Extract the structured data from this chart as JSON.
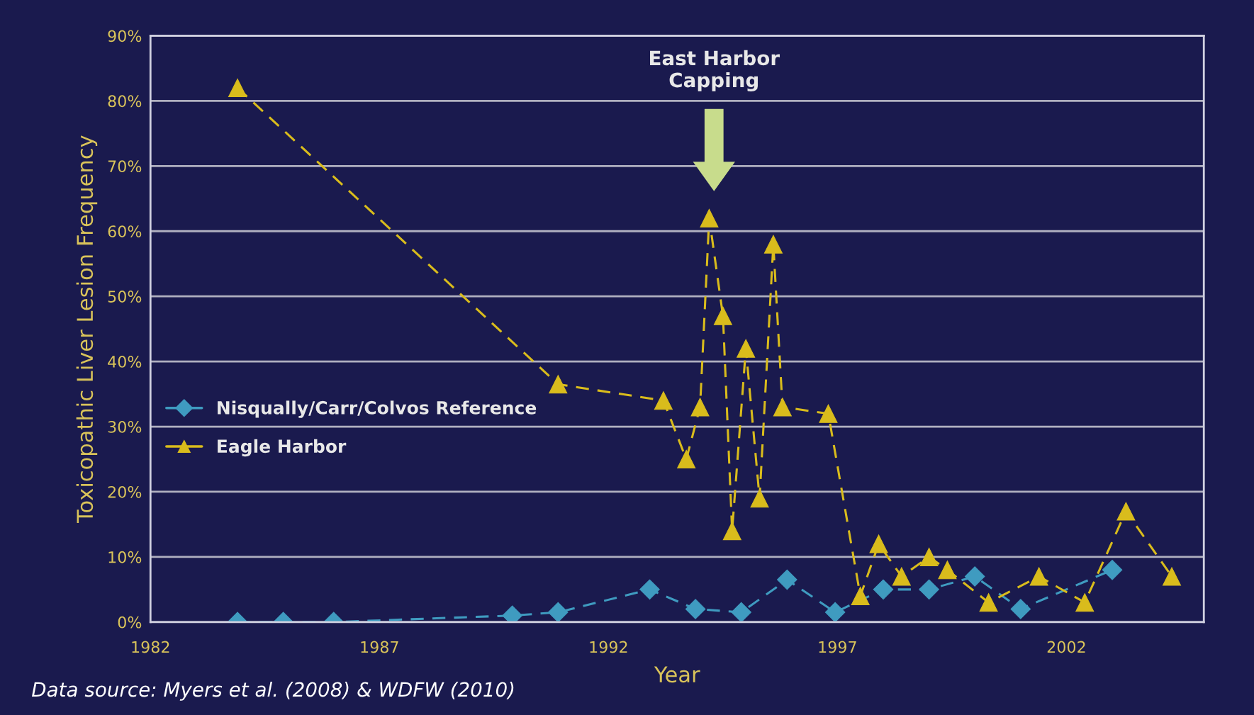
{
  "chart_data": {
    "type": "line",
    "xlabel": "Year",
    "ylabel": "Toxicopathic Liver Lesion Frequency",
    "xlim": [
      1982,
      2005
    ],
    "xticks": [
      1982,
      1987,
      1992,
      1997,
      2002
    ],
    "ylim": [
      0,
      90
    ],
    "yticks": [
      {
        "value": 0,
        "label": "0%"
      },
      {
        "value": 10,
        "label": "10%"
      },
      {
        "value": 20,
        "label": "20%"
      },
      {
        "value": 30,
        "label": "30%"
      },
      {
        "value": 40,
        "label": "40%"
      },
      {
        "value": 50,
        "label": "50%"
      },
      {
        "value": 60,
        "label": "60%"
      },
      {
        "value": 70,
        "label": "70%"
      },
      {
        "value": 80,
        "label": "80%"
      },
      {
        "value": 90,
        "label": "90%"
      }
    ],
    "grid": "y",
    "legend": "left",
    "line_style": "dashed",
    "series": [
      {
        "name": "Nisqually/Carr/Colvos Reference",
        "color": "#3f9bc0",
        "marker": "diamond",
        "x": [
          1983.9,
          1984.9,
          1986.0,
          1989.9,
          1990.9,
          1992.9,
          1993.9,
          1994.9,
          1995.9,
          1996.95,
          1998.0,
          1999.0,
          2000.0,
          2001.0,
          2003.0
        ],
        "values": [
          0,
          0,
          0,
          1,
          1.5,
          5,
          2,
          1.5,
          6.5,
          1.5,
          5,
          5,
          7,
          2,
          8
        ]
      },
      {
        "name": "Eagle Harbor",
        "color": "#d9bc1c",
        "marker": "triangle",
        "x": [
          1983.9,
          1990.9,
          1993.2,
          1993.7,
          1994.0,
          1994.2,
          1994.5,
          1994.7,
          1995.0,
          1995.3,
          1995.6,
          1995.8,
          1996.8,
          1997.5,
          1997.9,
          1998.4,
          1999.0,
          1999.4,
          2000.3,
          2001.4,
          2002.4,
          2003.3,
          2004.3
        ],
        "values": [
          82,
          36.5,
          34,
          25,
          33,
          62,
          47,
          14,
          42,
          19,
          58,
          33,
          32,
          4,
          12,
          7,
          10,
          8,
          3,
          7,
          3,
          17,
          7
        ]
      }
    ],
    "annotations": [
      "East Harbor\nCapping",
      "Data source: Myers et al. (2008) & WDFW (2010)"
    ]
  }
}
